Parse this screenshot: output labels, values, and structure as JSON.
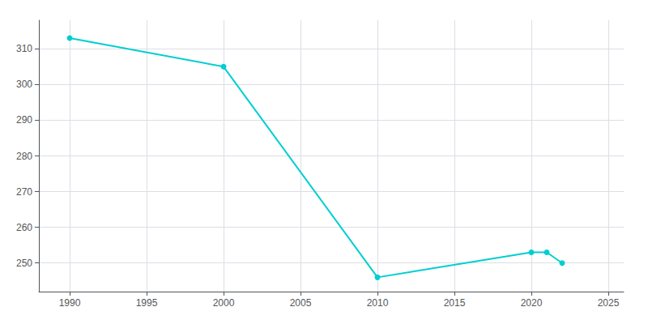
{
  "chart_data": {
    "type": "line",
    "x": [
      1990,
      2000,
      2010,
      2020,
      2021,
      2022
    ],
    "values": [
      313,
      305,
      246,
      253,
      253,
      250
    ],
    "color": "#00CED1",
    "marker": "circle",
    "xlim": [
      1988,
      2026
    ],
    "ylim": [
      242,
      318
    ],
    "xticks": [
      1990,
      1995,
      2000,
      2005,
      2010,
      2015,
      2020,
      2025
    ],
    "yticks": [
      250,
      260,
      270,
      280,
      290,
      300,
      310
    ],
    "grid": true
  }
}
